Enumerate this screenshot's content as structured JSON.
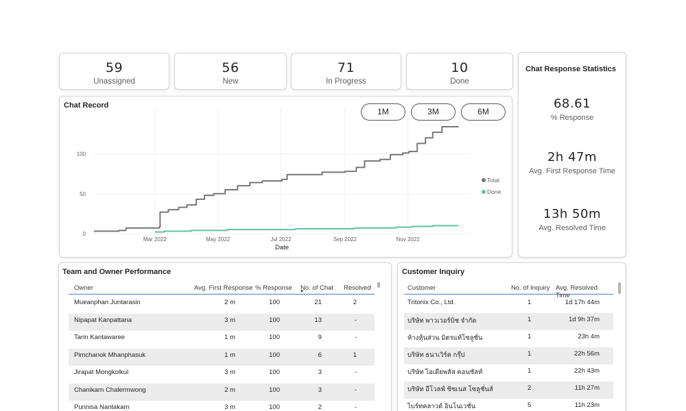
{
  "kpis": [
    {
      "value": "59",
      "label": "Unassigned"
    },
    {
      "value": "56",
      "label": "New"
    },
    {
      "value": "71",
      "label": "In Progress"
    },
    {
      "value": "10",
      "label": "Done"
    }
  ],
  "chat_record": {
    "title": "Chat Record",
    "buttons": [
      "1M",
      "3M",
      "6M"
    ]
  },
  "stats": {
    "title": "Chat Response Statistics",
    "items": [
      {
        "value": "68.61",
        "label": "% Response"
      },
      {
        "value": "2h 47m",
        "label": "Avg. First Response Time"
      },
      {
        "value": "13h 50m",
        "label": "Avg. Resolved Time"
      }
    ]
  },
  "chart_data": {
    "type": "line",
    "title": "Chat Record",
    "xlabel": "Date",
    "ylabel": "",
    "x_ticks": [
      "Mar 2022",
      "May 2022",
      "Jul 2022",
      "Sep 2022",
      "Nov 2022"
    ],
    "y_ticks": [
      0,
      50,
      100
    ],
    "ylim": [
      0,
      140
    ],
    "legend_position": "right",
    "x_domain": [
      "2022-01-01",
      "2022-12-31"
    ],
    "series": [
      {
        "name": "Total",
        "color": "#77767b",
        "points": [
          [
            "2022-01-01",
            3
          ],
          [
            "2022-01-25",
            4
          ],
          [
            "2022-02-01",
            7
          ],
          [
            "2022-02-21",
            7
          ],
          [
            "2022-03-05",
            8
          ],
          [
            "2022-03-06",
            27
          ],
          [
            "2022-03-14",
            30
          ],
          [
            "2022-03-24",
            33
          ],
          [
            "2022-04-01",
            36
          ],
          [
            "2022-04-10",
            43
          ],
          [
            "2022-04-18",
            48
          ],
          [
            "2022-04-27",
            50
          ],
          [
            "2022-05-08",
            55
          ],
          [
            "2022-05-20",
            60
          ],
          [
            "2022-06-01",
            64
          ],
          [
            "2022-06-13",
            66
          ],
          [
            "2022-07-02",
            68
          ],
          [
            "2022-07-07",
            74
          ],
          [
            "2022-08-01",
            74
          ],
          [
            "2022-08-10",
            77
          ],
          [
            "2022-09-01",
            78
          ],
          [
            "2022-09-12",
            83
          ],
          [
            "2022-09-20",
            91
          ],
          [
            "2022-10-05",
            93
          ],
          [
            "2022-10-15",
            99
          ],
          [
            "2022-10-27",
            101
          ],
          [
            "2022-11-02",
            103
          ],
          [
            "2022-11-10",
            113
          ],
          [
            "2022-11-18",
            120
          ],
          [
            "2022-11-25",
            127
          ],
          [
            "2022-12-04",
            134
          ],
          [
            "2022-12-20",
            134
          ]
        ]
      },
      {
        "name": "Done",
        "color": "#5fc4a0",
        "points": [
          [
            "2022-03-01",
            2
          ],
          [
            "2022-03-10",
            3
          ],
          [
            "2022-04-05",
            4
          ],
          [
            "2022-05-10",
            5
          ],
          [
            "2022-07-15",
            6
          ],
          [
            "2022-09-10",
            7
          ],
          [
            "2022-10-20",
            8
          ],
          [
            "2022-11-05",
            9
          ],
          [
            "2022-11-25",
            10
          ],
          [
            "2022-12-20",
            10
          ]
        ]
      }
    ]
  },
  "team": {
    "title": "Team and Owner Performance",
    "columns": [
      "Owner",
      "Avg. First Response",
      "% Response",
      "No. of Chat",
      "Resolved"
    ],
    "rows": [
      [
        "Mueanphan Juntarasin",
        "2 m",
        "100",
        "21",
        "2"
      ],
      [
        "Nipapat Kanpattana",
        "3 m",
        "100",
        "13",
        "-"
      ],
      [
        "Tarin Kantawaree",
        "1 m",
        "100",
        "9",
        "-"
      ],
      [
        "Pimchanok Mhanphasuk",
        "1 m",
        "100",
        "6",
        "1"
      ],
      [
        "Jirapat Mongkolkul",
        "3 m",
        "100",
        "3",
        "-"
      ],
      [
        "Chanikarn Chalermwong",
        "2 m",
        "100",
        "3",
        "-"
      ],
      [
        "Punnisa Nantakarn",
        "3 m",
        "100",
        "2",
        "-"
      ]
    ]
  },
  "customer": {
    "title": "Customer Inquiry",
    "columns": [
      "Customer",
      "No. of Inquiry",
      "Avg. Resolved Time"
    ],
    "rows": [
      [
        "Tritonix Co., Ltd.",
        "1",
        "1d 17h 44m"
      ],
      [
        "บริษัท พาวเวอร์บิช จำกัด",
        "1",
        "1d 9h 37m"
      ],
      [
        "ห้างหุ้นส่วน มิตรแท้โซลูชั่น",
        "1",
        "23h 4m"
      ],
      [
        "บริษัท ธนาเวิร์ค กรุ๊ป",
        "1",
        "22h 56m"
      ],
      [
        "บริษัท ไอเดียพลัส คอนซัลท์",
        "1",
        "22h 43m"
      ],
      [
        "บริษัท อีโวลฟ์ ซิซเนส โซลูชั่นส์",
        "2",
        "11h 27m"
      ],
      [
        "ไบร์ทคลาวด์ อินโนเวชั่น",
        "5",
        "11h 23m"
      ]
    ]
  }
}
